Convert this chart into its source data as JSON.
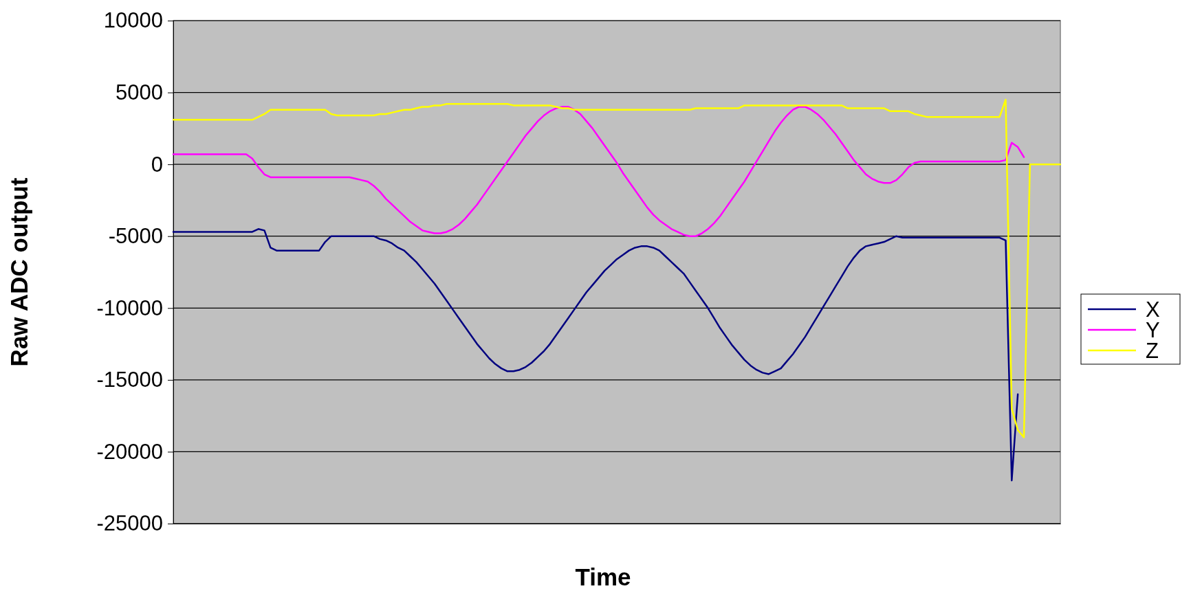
{
  "chart_data": {
    "type": "line",
    "xlabel": "Time",
    "ylabel": "Raw ADC output",
    "categories": [
      null,
      null,
      null,
      null,
      null,
      null,
      null,
      null,
      null,
      null,
      null,
      null,
      null,
      null,
      null,
      null,
      null,
      null,
      null,
      null,
      null,
      null,
      null,
      null,
      null,
      null,
      null,
      null,
      null,
      null,
      null,
      null,
      null,
      null,
      null,
      null,
      null,
      null,
      null,
      null,
      null,
      null,
      null,
      null,
      null,
      null,
      null,
      null,
      null,
      null,
      null,
      null,
      null,
      null,
      null,
      null,
      null,
      null,
      null,
      null,
      null,
      null,
      null,
      null,
      null,
      null,
      null,
      null,
      null,
      null,
      null,
      null,
      null,
      null,
      null,
      null,
      null,
      null,
      null,
      null,
      null,
      null,
      null,
      null,
      null,
      null,
      null,
      null,
      null,
      null,
      null,
      null,
      null,
      null,
      null,
      null,
      null,
      null,
      null,
      null,
      null,
      null,
      null,
      null,
      null,
      null,
      null,
      null,
      null,
      null,
      null,
      null,
      null,
      null,
      null,
      null,
      null,
      null,
      null,
      null,
      null,
      null,
      null,
      null,
      null,
      null,
      null,
      null,
      null,
      null,
      null,
      null,
      null,
      null,
      null,
      null,
      null,
      null,
      null,
      null,
      null,
      null,
      null,
      null,
      null,
      null,
      null
    ],
    "series": [
      {
        "name": "X",
        "color": "#000080",
        "values": [
          -4700,
          -4700,
          -4700,
          -4700,
          -4700,
          -4700,
          -4700,
          -4700,
          -4700,
          -4700,
          -4700,
          -4700,
          -4700,
          -4700,
          -4500,
          -4600,
          -5800,
          -6000,
          -6000,
          -6000,
          -6000,
          -6000,
          -6000,
          -6000,
          -6000,
          -5400,
          -5000,
          -5000,
          -5000,
          -5000,
          -5000,
          -5000,
          -5000,
          -5000,
          -5200,
          -5300,
          -5500,
          -5800,
          -6000,
          -6400,
          -6800,
          -7300,
          -7800,
          -8300,
          -8900,
          -9500,
          -10100,
          -10700,
          -11300,
          -11900,
          -12500,
          -13000,
          -13500,
          -13900,
          -14200,
          -14400,
          -14400,
          -14300,
          -14100,
          -13800,
          -13400,
          -13000,
          -12500,
          -11900,
          -11300,
          -10700,
          -10100,
          -9500,
          -8900,
          -8400,
          -7900,
          -7400,
          -7000,
          -6600,
          -6300,
          -6000,
          -5800,
          -5700,
          -5700,
          -5800,
          -6000,
          -6400,
          -6800,
          -7200,
          -7600,
          -8200,
          -8800,
          -9400,
          -10000,
          -10700,
          -11400,
          -12000,
          -12600,
          -13100,
          -13600,
          -14000,
          -14300,
          -14500,
          -14600,
          -14400,
          -14200,
          -13700,
          -13200,
          -12600,
          -12000,
          -11300,
          -10600,
          -9900,
          -9200,
          -8500,
          -7800,
          -7100,
          -6500,
          -6000,
          -5700,
          -5600,
          -5500,
          -5400,
          -5200,
          -5000,
          -5100,
          -5100,
          -5100,
          -5100,
          -5100,
          -5100,
          -5100,
          -5100,
          -5100,
          -5100,
          -5100,
          -5100,
          -5100,
          -5100,
          -5100,
          -5100,
          -5100,
          -5300,
          -22000,
          -16000,
          null,
          null,
          null,
          null,
          null,
          null,
          null
        ]
      },
      {
        "name": "Y",
        "color": "#ff00ff",
        "values": [
          700,
          700,
          700,
          700,
          700,
          700,
          700,
          700,
          700,
          700,
          700,
          700,
          700,
          400,
          -200,
          -700,
          -900,
          -900,
          -900,
          -900,
          -900,
          -900,
          -900,
          -900,
          -900,
          -900,
          -900,
          -900,
          -900,
          -900,
          -1000,
          -1100,
          -1200,
          -1500,
          -1900,
          -2400,
          -2800,
          -3200,
          -3600,
          -4000,
          -4300,
          -4600,
          -4700,
          -4800,
          -4800,
          -4700,
          -4500,
          -4200,
          -3800,
          -3300,
          -2800,
          -2200,
          -1600,
          -1000,
          -400,
          200,
          800,
          1400,
          2000,
          2500,
          3000,
          3400,
          3700,
          3900,
          4000,
          4000,
          3800,
          3500,
          3000,
          2500,
          1900,
          1300,
          700,
          100,
          -600,
          -1200,
          -1800,
          -2400,
          -3000,
          -3500,
          -3900,
          -4200,
          -4500,
          -4700,
          -4900,
          -5000,
          -5000,
          -4800,
          -4500,
          -4100,
          -3600,
          -3000,
          -2400,
          -1800,
          -1200,
          -500,
          200,
          900,
          1600,
          2300,
          2900,
          3400,
          3800,
          4000,
          4000,
          3800,
          3500,
          3100,
          2600,
          2100,
          1500,
          900,
          300,
          -200,
          -700,
          -1000,
          -1200,
          -1300,
          -1300,
          -1100,
          -700,
          -200,
          100,
          200,
          200,
          200,
          200,
          200,
          200,
          200,
          200,
          200,
          200,
          200,
          200,
          200,
          200,
          300,
          1500,
          1200,
          500,
          null,
          null,
          null,
          null,
          null,
          null
        ]
      },
      {
        "name": "Z",
        "color": "#ffff00",
        "values": [
          3100,
          3100,
          3100,
          3100,
          3100,
          3100,
          3100,
          3100,
          3100,
          3100,
          3100,
          3100,
          3100,
          3100,
          3300,
          3500,
          3800,
          3800,
          3800,
          3800,
          3800,
          3800,
          3800,
          3800,
          3800,
          3800,
          3500,
          3400,
          3400,
          3400,
          3400,
          3400,
          3400,
          3400,
          3500,
          3500,
          3600,
          3700,
          3800,
          3800,
          3900,
          4000,
          4000,
          4100,
          4100,
          4200,
          4200,
          4200,
          4200,
          4200,
          4200,
          4200,
          4200,
          4200,
          4200,
          4200,
          4100,
          4100,
          4100,
          4100,
          4100,
          4100,
          4100,
          4000,
          3900,
          3900,
          3800,
          3800,
          3800,
          3800,
          3800,
          3800,
          3800,
          3800,
          3800,
          3800,
          3800,
          3800,
          3800,
          3800,
          3800,
          3800,
          3800,
          3800,
          3800,
          3800,
          3900,
          3900,
          3900,
          3900,
          3900,
          3900,
          3900,
          3900,
          4100,
          4100,
          4100,
          4100,
          4100,
          4100,
          4100,
          4100,
          4100,
          4100,
          4100,
          4100,
          4100,
          4100,
          4100,
          4100,
          4100,
          3900,
          3900,
          3900,
          3900,
          3900,
          3900,
          3900,
          3700,
          3700,
          3700,
          3700,
          3500,
          3400,
          3300,
          3300,
          3300,
          3300,
          3300,
          3300,
          3300,
          3300,
          3300,
          3300,
          3300,
          3300,
          3300,
          4500,
          -17000,
          -18500,
          -19000,
          0,
          0,
          0,
          0,
          0,
          0
        ]
      }
    ],
    "ylim": [
      -25000,
      10000
    ],
    "yticks": [
      -25000,
      -20000,
      -15000,
      -10000,
      -5000,
      0,
      5000,
      10000
    ],
    "grid": "y",
    "legend": "right"
  }
}
